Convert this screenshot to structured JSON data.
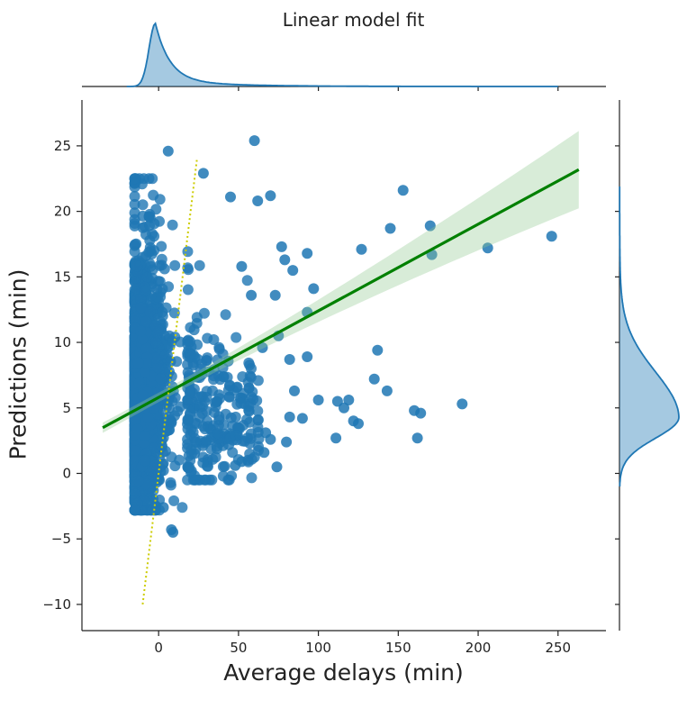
{
  "chart_data": {
    "type": "scatter",
    "title": "Linear model fit",
    "xlabel": "Average delays (min)",
    "ylabel": "Predictions (min)",
    "xlim": [
      -48,
      280
    ],
    "ylim": [
      -12,
      28.5
    ],
    "xticks": [
      0,
      50,
      100,
      150,
      200,
      250
    ],
    "yticks": [
      -10,
      -5,
      0,
      5,
      10,
      15,
      20,
      25
    ],
    "grid": false,
    "legend": "none",
    "colors": {
      "points": "#1f77b4",
      "fit_line": "#008000",
      "confidence_band": "#90c890",
      "identity_line": "#cccc00",
      "marginal": "#1f77b4"
    },
    "regression": {
      "x_range": [
        -35,
        263
      ],
      "slope": 0.0661,
      "intercept": 5.8,
      "ci_halfwidth_at_ends": [
        0.5,
        2.6
      ]
    },
    "identity_line": {
      "from": [
        -10,
        -10
      ],
      "to": [
        24,
        24
      ]
    },
    "cluster_summary": {
      "x_range": [
        -15,
        35
      ],
      "y_range": [
        -2.8,
        22.5
      ],
      "y_center": 5.2
    },
    "outliers": [
      [
        60,
        25.4
      ],
      [
        6,
        24.6
      ],
      [
        28,
        22.9
      ],
      [
        45,
        21.1
      ],
      [
        70,
        21.2
      ],
      [
        153,
        21.6
      ],
      [
        62,
        20.8
      ],
      [
        170,
        18.9
      ],
      [
        145,
        18.7
      ],
      [
        246,
        18.1
      ],
      [
        127,
        17.1
      ],
      [
        206,
        17.2
      ],
      [
        171,
        16.7
      ],
      [
        93,
        16.8
      ],
      [
        77,
        17.3
      ],
      [
        84,
        15.5
      ],
      [
        79,
        16.3
      ],
      [
        97,
        14.1
      ],
      [
        73,
        13.6
      ],
      [
        93,
        12.3
      ],
      [
        137,
        9.4
      ],
      [
        93,
        8.9
      ],
      [
        82,
        8.7
      ],
      [
        135,
        7.2
      ],
      [
        143,
        6.3
      ],
      [
        100,
        5.6
      ],
      [
        112,
        5.5
      ],
      [
        119,
        5.6
      ],
      [
        116,
        5.0
      ],
      [
        122,
        4.0
      ],
      [
        125,
        3.8
      ],
      [
        160,
        4.8
      ],
      [
        164,
        4.6
      ],
      [
        190,
        5.3
      ],
      [
        111,
        2.7
      ],
      [
        162,
        2.7
      ],
      [
        66,
        1.6
      ],
      [
        70,
        2.6
      ],
      [
        80,
        2.4
      ],
      [
        82,
        4.3
      ],
      [
        74,
        0.5
      ],
      [
        67,
        3.1
      ],
      [
        56,
        1.0
      ],
      [
        52,
        0.9
      ],
      [
        48,
        0.6
      ],
      [
        8,
        -4.3
      ],
      [
        9,
        -4.5
      ],
      [
        -2,
        -2.5
      ],
      [
        3,
        -2.6
      ],
      [
        65,
        9.6
      ],
      [
        75,
        10.5
      ],
      [
        85,
        6.3
      ],
      [
        90,
        4.2
      ],
      [
        58,
        13.6
      ],
      [
        52,
        15.8
      ]
    ],
    "marginal_x": {
      "peak_x": -2,
      "shape": "right-skewed",
      "range": [
        -20,
        250
      ]
    },
    "marginal_y": {
      "peak_y": 4.3,
      "shape": "right-skewed",
      "range": [
        -1,
        22
      ]
    }
  }
}
